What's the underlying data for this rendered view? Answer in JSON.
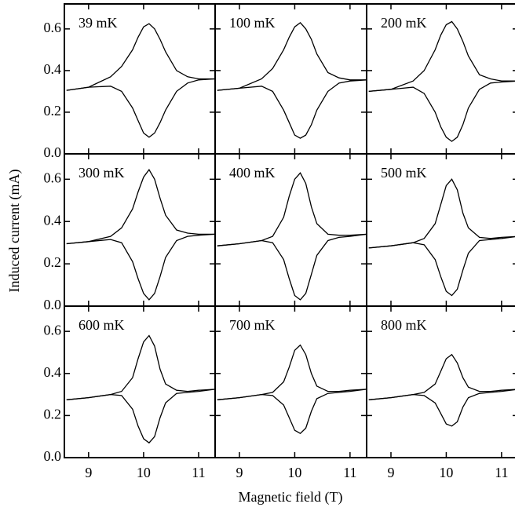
{
  "figure": {
    "xlabel": "Magnetic field (T)",
    "ylabel": "Induced current (mA)"
  },
  "chart_data": [
    {
      "type": "line",
      "title": "39 mK",
      "x": [
        8.6,
        9.0,
        9.4,
        9.6,
        9.8,
        9.9,
        10.0,
        10.1,
        10.2,
        10.3,
        10.4,
        10.6,
        10.8,
        11.0,
        11.3
      ],
      "xlim": [
        8.56,
        11.3
      ],
      "ylim": [
        0,
        0.72
      ],
      "xticks": [
        9,
        10,
        11
      ],
      "yticks": [
        {
          "value": 0,
          "label": "0.0"
        },
        0.2,
        0.4,
        0.6
      ],
      "series": [
        {
          "color": "#000000",
          "values": [
            0.305,
            0.32,
            0.37,
            0.42,
            0.5,
            0.56,
            0.61,
            0.625,
            0.6,
            0.55,
            0.49,
            0.4,
            0.37,
            0.36,
            0.36
          ]
        },
        {
          "color": "#000000",
          "values": [
            0.305,
            0.32,
            0.325,
            0.3,
            0.22,
            0.16,
            0.1,
            0.08,
            0.1,
            0.15,
            0.21,
            0.3,
            0.34,
            0.355,
            0.36
          ]
        }
      ]
    },
    {
      "type": "line",
      "title": "100 mK",
      "x": [
        8.6,
        9.0,
        9.4,
        9.6,
        9.8,
        9.9,
        10.0,
        10.1,
        10.2,
        10.3,
        10.4,
        10.6,
        10.8,
        11.0,
        11.3
      ],
      "xlim": [
        8.56,
        11.3
      ],
      "ylim": [
        0,
        0.72
      ],
      "xticks": [
        9,
        10,
        11
      ],
      "yticks": [
        0,
        0.2,
        0.4,
        0.6
      ],
      "series": [
        {
          "color": "#000000",
          "values": [
            0.305,
            0.315,
            0.36,
            0.41,
            0.5,
            0.56,
            0.61,
            0.63,
            0.6,
            0.55,
            0.48,
            0.39,
            0.365,
            0.355,
            0.355
          ]
        },
        {
          "color": "#000000",
          "values": [
            0.305,
            0.315,
            0.325,
            0.3,
            0.21,
            0.15,
            0.09,
            0.075,
            0.09,
            0.14,
            0.21,
            0.3,
            0.34,
            0.35,
            0.355
          ]
        }
      ]
    },
    {
      "type": "line",
      "title": "200 mK",
      "x": [
        8.6,
        9.0,
        9.4,
        9.6,
        9.8,
        9.9,
        10.0,
        10.1,
        10.2,
        10.3,
        10.4,
        10.6,
        10.8,
        11.0,
        11.3
      ],
      "xlim": [
        8.56,
        11.3
      ],
      "ylim": [
        0,
        0.72
      ],
      "xticks": [
        9,
        10,
        11
      ],
      "yticks": [
        0,
        0.2,
        0.4,
        0.6
      ],
      "series": [
        {
          "color": "#000000",
          "values": [
            0.3,
            0.31,
            0.35,
            0.4,
            0.5,
            0.57,
            0.62,
            0.635,
            0.6,
            0.54,
            0.47,
            0.38,
            0.36,
            0.35,
            0.35
          ]
        },
        {
          "color": "#000000",
          "values": [
            0.3,
            0.31,
            0.32,
            0.29,
            0.2,
            0.13,
            0.08,
            0.06,
            0.08,
            0.14,
            0.22,
            0.31,
            0.34,
            0.345,
            0.35
          ]
        }
      ]
    },
    {
      "type": "line",
      "title": "300 mK",
      "x": [
        8.6,
        9.0,
        9.4,
        9.6,
        9.8,
        9.9,
        10.0,
        10.1,
        10.2,
        10.3,
        10.4,
        10.6,
        10.8,
        11.0,
        11.3
      ],
      "xlim": [
        8.56,
        11.3
      ],
      "ylim": [
        0,
        0.72
      ],
      "xticks": [
        9,
        10,
        11
      ],
      "yticks": [
        {
          "value": 0,
          "label": "0.0"
        },
        0.2,
        0.4,
        0.6
      ],
      "series": [
        {
          "color": "#000000",
          "values": [
            0.295,
            0.305,
            0.33,
            0.37,
            0.46,
            0.54,
            0.61,
            0.645,
            0.6,
            0.51,
            0.43,
            0.36,
            0.345,
            0.34,
            0.34
          ]
        },
        {
          "color": "#000000",
          "values": [
            0.295,
            0.305,
            0.315,
            0.3,
            0.21,
            0.13,
            0.06,
            0.03,
            0.06,
            0.14,
            0.23,
            0.31,
            0.33,
            0.335,
            0.34
          ]
        }
      ]
    },
    {
      "type": "line",
      "title": "400 mK",
      "x": [
        8.6,
        9.0,
        9.4,
        9.6,
        9.8,
        9.9,
        10.0,
        10.1,
        10.2,
        10.3,
        10.4,
        10.6,
        10.8,
        11.0,
        11.3
      ],
      "xlim": [
        8.56,
        11.3
      ],
      "ylim": [
        0,
        0.72
      ],
      "xticks": [
        9,
        10,
        11
      ],
      "yticks": [
        0,
        0.2,
        0.4,
        0.6
      ],
      "series": [
        {
          "color": "#000000",
          "values": [
            0.285,
            0.295,
            0.31,
            0.33,
            0.42,
            0.52,
            0.6,
            0.63,
            0.58,
            0.47,
            0.39,
            0.34,
            0.335,
            0.335,
            0.34
          ]
        },
        {
          "color": "#000000",
          "values": [
            0.285,
            0.295,
            0.31,
            0.3,
            0.22,
            0.13,
            0.05,
            0.03,
            0.06,
            0.15,
            0.24,
            0.31,
            0.325,
            0.33,
            0.34
          ]
        }
      ]
    },
    {
      "type": "line",
      "title": "500 mK",
      "x": [
        8.6,
        9.0,
        9.4,
        9.6,
        9.8,
        9.9,
        10.0,
        10.1,
        10.2,
        10.3,
        10.4,
        10.6,
        10.8,
        11.0,
        11.3
      ],
      "xlim": [
        8.56,
        11.3
      ],
      "ylim": [
        0,
        0.72
      ],
      "xticks": [
        9,
        10,
        11
      ],
      "yticks": [
        0,
        0.2,
        0.4,
        0.6
      ],
      "series": [
        {
          "color": "#000000",
          "values": [
            0.275,
            0.285,
            0.3,
            0.32,
            0.39,
            0.48,
            0.57,
            0.6,
            0.55,
            0.44,
            0.37,
            0.325,
            0.32,
            0.325,
            0.33
          ]
        },
        {
          "color": "#000000",
          "values": [
            0.275,
            0.285,
            0.3,
            0.29,
            0.22,
            0.14,
            0.07,
            0.05,
            0.08,
            0.17,
            0.25,
            0.31,
            0.315,
            0.32,
            0.33
          ]
        }
      ]
    },
    {
      "type": "line",
      "title": "600 mK",
      "x": [
        8.6,
        9.0,
        9.4,
        9.6,
        9.8,
        9.9,
        10.0,
        10.1,
        10.2,
        10.3,
        10.4,
        10.6,
        10.8,
        11.0,
        11.3
      ],
      "xlim": [
        8.56,
        11.3
      ],
      "ylim": [
        0,
        0.72
      ],
      "xticks": [
        9,
        10,
        11
      ],
      "yticks": [
        {
          "value": 0,
          "label": "0.0"
        },
        0.2,
        0.4,
        0.6
      ],
      "series": [
        {
          "color": "#000000",
          "values": [
            0.275,
            0.285,
            0.3,
            0.315,
            0.38,
            0.47,
            0.55,
            0.58,
            0.53,
            0.42,
            0.35,
            0.32,
            0.315,
            0.32,
            0.325
          ]
        },
        {
          "color": "#000000",
          "values": [
            0.275,
            0.285,
            0.3,
            0.295,
            0.23,
            0.15,
            0.09,
            0.07,
            0.1,
            0.19,
            0.26,
            0.305,
            0.31,
            0.315,
            0.325
          ]
        }
      ]
    },
    {
      "type": "line",
      "title": "700 mK",
      "x": [
        8.6,
        9.0,
        9.4,
        9.6,
        9.8,
        9.9,
        10.0,
        10.1,
        10.2,
        10.3,
        10.4,
        10.6,
        10.8,
        11.0,
        11.3
      ],
      "xlim": [
        8.56,
        11.3
      ],
      "ylim": [
        0,
        0.72
      ],
      "xticks": [
        9,
        10,
        11
      ],
      "yticks": [
        0,
        0.2,
        0.4,
        0.6
      ],
      "series": [
        {
          "color": "#000000",
          "values": [
            0.275,
            0.285,
            0.3,
            0.31,
            0.36,
            0.43,
            0.51,
            0.535,
            0.49,
            0.4,
            0.34,
            0.315,
            0.315,
            0.32,
            0.325
          ]
        },
        {
          "color": "#000000",
          "values": [
            0.275,
            0.285,
            0.3,
            0.295,
            0.25,
            0.19,
            0.13,
            0.115,
            0.14,
            0.22,
            0.28,
            0.305,
            0.31,
            0.315,
            0.325
          ]
        }
      ]
    },
    {
      "type": "line",
      "title": "800 mK",
      "x": [
        8.6,
        9.0,
        9.4,
        9.6,
        9.8,
        9.9,
        10.0,
        10.1,
        10.2,
        10.3,
        10.4,
        10.6,
        10.8,
        11.0,
        11.3
      ],
      "xlim": [
        8.56,
        11.3
      ],
      "ylim": [
        0,
        0.72
      ],
      "xticks": [
        9,
        10,
        11
      ],
      "yticks": [
        0,
        0.2,
        0.4,
        0.6
      ],
      "series": [
        {
          "color": "#000000",
          "values": [
            0.275,
            0.285,
            0.3,
            0.31,
            0.35,
            0.41,
            0.47,
            0.49,
            0.45,
            0.38,
            0.335,
            0.315,
            0.315,
            0.32,
            0.325
          ]
        },
        {
          "color": "#000000",
          "values": [
            0.275,
            0.285,
            0.3,
            0.295,
            0.26,
            0.21,
            0.16,
            0.15,
            0.17,
            0.24,
            0.285,
            0.305,
            0.31,
            0.315,
            0.325
          ]
        }
      ]
    }
  ]
}
